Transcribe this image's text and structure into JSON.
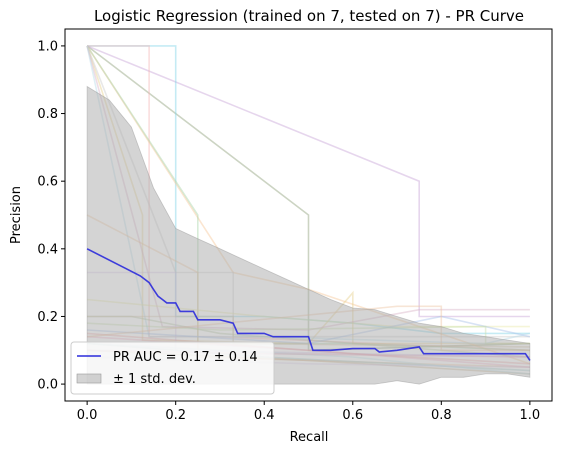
{
  "chart_data": {
    "type": "line",
    "title": "Logistic Regression (trained on 7, tested on 7) -  PR Curve",
    "xlabel": "Recall",
    "ylabel": "Precision",
    "xlim": [
      -0.05,
      1.05
    ],
    "ylim": [
      -0.05,
      1.05
    ],
    "x_ticks": [
      "0.0",
      "0.2",
      "0.4",
      "0.6",
      "0.8",
      "1.0"
    ],
    "y_ticks": [
      "0.0",
      "0.2",
      "0.4",
      "0.6",
      "0.8",
      "1.0"
    ],
    "grid": false,
    "legend_position": "lower-left",
    "legend": [
      {
        "label": "PR AUC = 0.17 ± 0.14",
        "kind": "line",
        "color": "#2b2bdb"
      },
      {
        "label": "± 1 std. dev.",
        "kind": "patch",
        "color": "#aaaaaa"
      }
    ],
    "mean_curve": {
      "color": "#2b2bdb",
      "points": [
        [
          0,
          0.4
        ],
        [
          0,
          0.4
        ],
        [
          0.12,
          0.32
        ],
        [
          0.13,
          0.31
        ],
        [
          0.14,
          0.3
        ],
        [
          0.15,
          0.28
        ],
        [
          0.16,
          0.26
        ],
        [
          0.17,
          0.25
        ],
        [
          0.18,
          0.24
        ],
        [
          0.2,
          0.24
        ],
        [
          0.21,
          0.215
        ],
        [
          0.24,
          0.215
        ],
        [
          0.25,
          0.19
        ],
        [
          0.3,
          0.19
        ],
        [
          0.33,
          0.18
        ],
        [
          0.34,
          0.15
        ],
        [
          0.4,
          0.15
        ],
        [
          0.42,
          0.14
        ],
        [
          0.5,
          0.14
        ],
        [
          0.51,
          0.1
        ],
        [
          0.55,
          0.1
        ],
        [
          0.6,
          0.105
        ],
        [
          0.65,
          0.105
        ],
        [
          0.66,
          0.095
        ],
        [
          0.7,
          0.1
        ],
        [
          0.75,
          0.11
        ],
        [
          0.76,
          0.09
        ],
        [
          0.8,
          0.09
        ],
        [
          0.85,
          0.09
        ],
        [
          0.9,
          0.09
        ],
        [
          0.95,
          0.09
        ],
        [
          0.99,
          0.09
        ],
        [
          1.0,
          0.07
        ]
      ]
    },
    "std_band": {
      "color": "#aaaaaa",
      "upper": [
        [
          0,
          0.88
        ],
        [
          0.05,
          0.84
        ],
        [
          0.1,
          0.76
        ],
        [
          0.15,
          0.58
        ],
        [
          0.2,
          0.46
        ],
        [
          0.25,
          0.43
        ],
        [
          0.3,
          0.4
        ],
        [
          0.35,
          0.37
        ],
        [
          0.4,
          0.34
        ],
        [
          0.45,
          0.31
        ],
        [
          0.5,
          0.28
        ],
        [
          0.55,
          0.25
        ],
        [
          0.6,
          0.225
        ],
        [
          0.65,
          0.22
        ],
        [
          0.7,
          0.2
        ],
        [
          0.75,
          0.18
        ],
        [
          0.8,
          0.17
        ],
        [
          0.85,
          0.15
        ],
        [
          0.9,
          0.14
        ],
        [
          0.95,
          0.13
        ],
        [
          1.0,
          0.12
        ]
      ],
      "lower": [
        [
          0,
          0.0
        ],
        [
          0.05,
          0.0
        ],
        [
          0.1,
          0.0
        ],
        [
          0.15,
          0.0
        ],
        [
          0.2,
          0.0
        ],
        [
          0.25,
          0.0
        ],
        [
          0.3,
          0.0
        ],
        [
          0.35,
          0.0
        ],
        [
          0.4,
          0.0
        ],
        [
          0.45,
          0.0
        ],
        [
          0.5,
          0.0
        ],
        [
          0.55,
          0.0
        ],
        [
          0.6,
          0.0
        ],
        [
          0.65,
          0.0
        ],
        [
          0.7,
          0.01
        ],
        [
          0.75,
          0.0
        ],
        [
          0.8,
          0.02
        ],
        [
          0.85,
          0.02
        ],
        [
          0.9,
          0.03
        ],
        [
          0.95,
          0.03
        ],
        [
          1.0,
          0.02
        ]
      ]
    },
    "fold_curves": [
      {
        "color": "#8fa07a",
        "points": [
          [
            0,
            1.0
          ],
          [
            0,
            1.0
          ],
          [
            0.5,
            0.5
          ],
          [
            0.5,
            0.1
          ],
          [
            1.0,
            0.12
          ]
        ]
      },
      {
        "color": "#c7a3d6",
        "points": [
          [
            0,
            1.0
          ],
          [
            0.75,
            0.6
          ],
          [
            0.75,
            0.2
          ],
          [
            1.0,
            0.2
          ]
        ]
      },
      {
        "color": "#7fd3e6",
        "points": [
          [
            0,
            1.0
          ],
          [
            0.2,
            1.0
          ],
          [
            0.2,
            0.2
          ],
          [
            0.4,
            0.2
          ],
          [
            0.6,
            0.18
          ],
          [
            0.8,
            0.15
          ],
          [
            1.0,
            0.15
          ]
        ]
      },
      {
        "color": "#f4b6b6",
        "points": [
          [
            0,
            1.0
          ],
          [
            0.14,
            1.0
          ],
          [
            0.14,
            0.14
          ],
          [
            0.3,
            0.14
          ],
          [
            1.0,
            0.1
          ]
        ]
      },
      {
        "color": "#f7c79a",
        "points": [
          [
            0,
            1.0
          ],
          [
            0.33,
            0.33
          ],
          [
            0.5,
            0.28
          ],
          [
            1.0,
            0.06
          ]
        ]
      },
      {
        "color": "#a9d4a9",
        "points": [
          [
            0,
            1.0
          ],
          [
            0.25,
            0.5
          ],
          [
            0.25,
            0.12
          ],
          [
            0.6,
            0.12
          ],
          [
            1.0,
            0.1
          ]
        ]
      },
      {
        "color": "#e6d18f",
        "points": [
          [
            0,
            1.0
          ],
          [
            0.125,
            0.5
          ],
          [
            0.125,
            0.13
          ],
          [
            0.5,
            0.12
          ],
          [
            0.6,
            0.27
          ],
          [
            0.6,
            0.12
          ],
          [
            1.0,
            0.12
          ]
        ]
      },
      {
        "color": "#cccccc",
        "points": [
          [
            0,
            1.0
          ],
          [
            0.2,
            0.33
          ],
          [
            0.33,
            0.33
          ],
          [
            0.33,
            0.14
          ],
          [
            1.0,
            0.14
          ]
        ]
      },
      {
        "color": "#d9b3c7",
        "points": [
          [
            0,
            1.0
          ],
          [
            0.17,
            0.17
          ],
          [
            0.5,
            0.16
          ],
          [
            0.75,
            0.22
          ],
          [
            1.0,
            0.22
          ]
        ]
      },
      {
        "color": "#b7dbe9",
        "points": [
          [
            0,
            1.0
          ],
          [
            0.14,
            0.14
          ],
          [
            0.4,
            0.14
          ],
          [
            0.9,
            0.12
          ],
          [
            1.0,
            0.15
          ]
        ]
      },
      {
        "color": "#f2c8a0",
        "points": [
          [
            0,
            0.5
          ],
          [
            0.25,
            0.33
          ],
          [
            0.25,
            0.08
          ],
          [
            1.0,
            0.05
          ]
        ]
      },
      {
        "color": "#b9c9a7",
        "points": [
          [
            0,
            0.2
          ],
          [
            0.1,
            0.2
          ],
          [
            0.3,
            0.15
          ],
          [
            1.0,
            0.08
          ]
        ]
      },
      {
        "color": "#d7c3e6",
        "points": [
          [
            0,
            0.33
          ],
          [
            0.2,
            0.33
          ],
          [
            0.2,
            0.1
          ],
          [
            1.0,
            0.08
          ]
        ]
      },
      {
        "color": "#e8e8a8",
        "points": [
          [
            0,
            0.25
          ],
          [
            0.4,
            0.2
          ],
          [
            0.7,
            0.17
          ],
          [
            1.0,
            0.17
          ]
        ]
      },
      {
        "color": "#f3b2c7",
        "points": [
          [
            0,
            0.14
          ],
          [
            0.5,
            0.1
          ],
          [
            1.0,
            0.05
          ]
        ]
      },
      {
        "color": "#9fc9c9",
        "points": [
          [
            0,
            0.12
          ],
          [
            0.4,
            0.08
          ],
          [
            1.0,
            0.04
          ]
        ]
      },
      {
        "color": "#c9b48f",
        "points": [
          [
            0,
            0.1
          ],
          [
            0.5,
            0.07
          ],
          [
            1.0,
            0.03
          ]
        ]
      },
      {
        "color": "#a8c2e8",
        "points": [
          [
            0,
            0.16
          ],
          [
            0.5,
            0.12
          ],
          [
            0.8,
            0.2
          ],
          [
            1.0,
            0.14
          ]
        ]
      },
      {
        "color": "#f0a8a8",
        "points": [
          [
            0,
            0.15
          ],
          [
            0.6,
            0.09
          ],
          [
            1.0,
            0.06
          ]
        ]
      },
      {
        "color": "#c8e0b0",
        "points": [
          [
            0,
            0.18
          ],
          [
            0.3,
            0.16
          ],
          [
            0.9,
            0.17
          ],
          [
            0.9,
            0.12
          ],
          [
            1.0,
            0.12
          ]
        ]
      },
      {
        "color": "#ddd0ee",
        "points": [
          [
            0,
            0.08
          ],
          [
            0.5,
            0.06
          ],
          [
            1.0,
            0.05
          ]
        ]
      },
      {
        "color": "#eec5a5",
        "points": [
          [
            0,
            0.14
          ],
          [
            0.7,
            0.23
          ],
          [
            0.8,
            0.23
          ],
          [
            0.8,
            0.1
          ],
          [
            1.0,
            0.1
          ]
        ]
      },
      {
        "color": "#bfe3ea",
        "points": [
          [
            0,
            0.12
          ],
          [
            0.6,
            0.08
          ],
          [
            0.75,
            0.06
          ],
          [
            1.0,
            0.03
          ]
        ]
      },
      {
        "color": "#d5c6a9",
        "points": [
          [
            0,
            0.2
          ],
          [
            0.33,
            0.2
          ],
          [
            0.33,
            0.12
          ],
          [
            1.0,
            0.11
          ]
        ]
      },
      {
        "color": "#e9aac2",
        "points": [
          [
            0,
            0.1
          ],
          [
            0.4,
            0.09
          ],
          [
            1.0,
            0.08
          ]
        ]
      }
    ]
  }
}
